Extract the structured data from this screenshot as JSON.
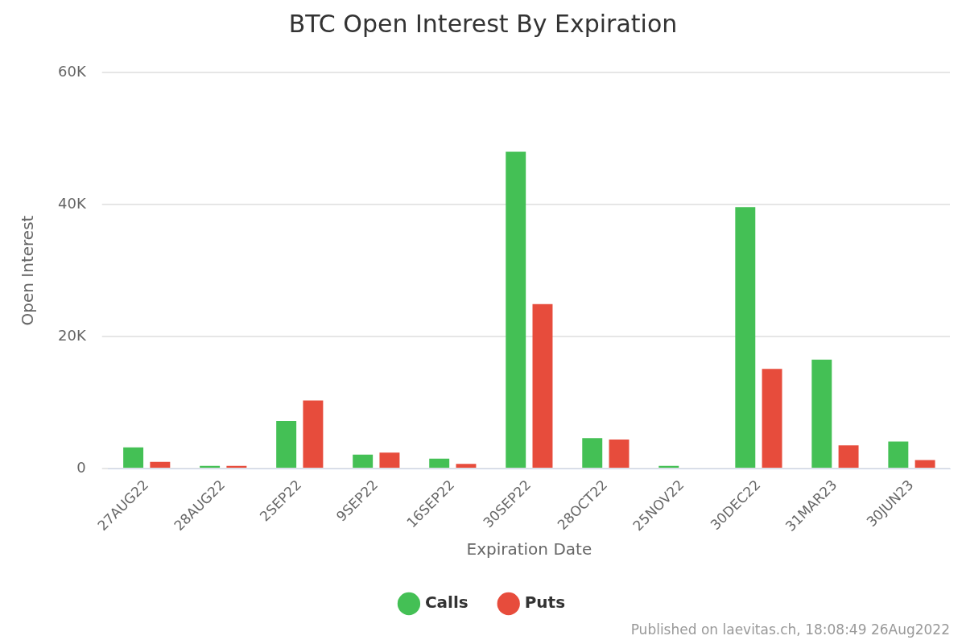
{
  "chart_data": {
    "type": "bar",
    "title": "BTC Open Interest By Expiration",
    "x_label": "Expiration Date",
    "y_label": "Open Interest",
    "annotation": "Published on laevitas.ch, 18:08:49 26Aug2022",
    "categories": [
      "27AUG22",
      "28AUG22",
      "2SEP22",
      "9SEP22",
      "16SEP22",
      "30SEP22",
      "28OCT22",
      "25NOV22",
      "30DEC22",
      "31MAR23",
      "30JUN23"
    ],
    "series": [
      {
        "name": "Calls",
        "color": "#44c055",
        "values": [
          3200,
          400,
          7200,
          2100,
          1500,
          48000,
          4600,
          400,
          39600,
          16500,
          4100
        ]
      },
      {
        "name": "Puts",
        "color": "#e74c3c",
        "values": [
          1000,
          400,
          10300,
          2400,
          700,
          24900,
          4400,
          0,
          15100,
          3500,
          1300
        ]
      }
    ],
    "ylim": [
      0,
      60000
    ],
    "yticks": [
      0,
      {
        "value": 20000,
        "label": "20K"
      },
      {
        "value": 40000,
        "label": "40K"
      },
      {
        "value": 60000,
        "label": "60K"
      }
    ],
    "grid": true,
    "legend": "bottom"
  }
}
